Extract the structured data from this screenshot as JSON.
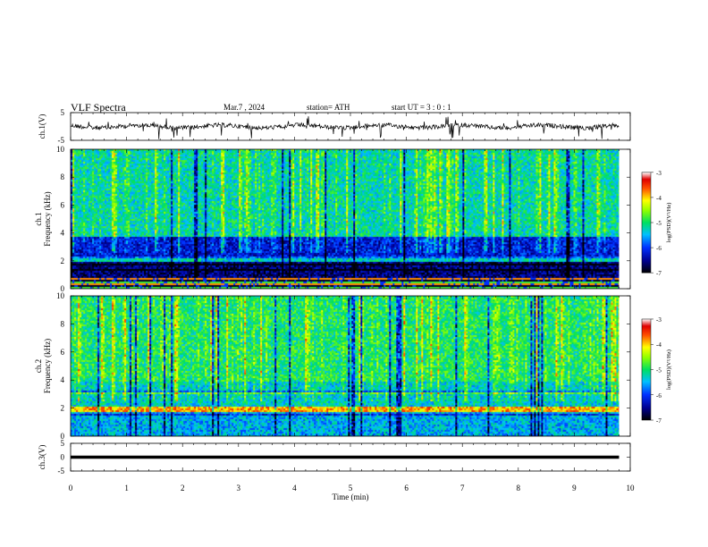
{
  "header": {
    "title": "VLF  Spectra",
    "date": "Mar.7  , 2024",
    "station": "station= ATH",
    "start": "start  UT  =    3  : 0   : 1"
  },
  "chart_data": [
    {
      "type": "line",
      "panel": "ch1-waveform",
      "ylabel": "ch.1(V)",
      "ylim": [
        -5,
        5
      ],
      "yticks": [
        "5",
        "-5"
      ],
      "x_range_min": [
        0,
        9.8
      ],
      "color": "#000000"
    },
    {
      "type": "heatmap",
      "panel": "ch1-spectrogram",
      "ylabel_channel": "ch.1",
      "ylabel": "Frequency (kHz)",
      "ylim": [
        0,
        10
      ],
      "yticks": [
        "0",
        "2",
        "4",
        "6",
        "8",
        "10"
      ],
      "x_range_min": [
        0,
        9.8
      ],
      "colorbar": {
        "label": "log(PSD)(V²/Hz)",
        "ticks": [
          "-3",
          "-4",
          "-5",
          "-6",
          "-7"
        ],
        "range": [
          -7,
          -3
        ]
      },
      "bands_khz": [
        {
          "from": 0,
          "to": 0.8,
          "level": "mixed-lines"
        },
        {
          "from": 0.8,
          "to": 2.0,
          "level": -6.6
        },
        {
          "from": 2.0,
          "to": 2.4,
          "level": -5.3
        },
        {
          "from": 2.4,
          "to": 3.8,
          "level": -6.2
        },
        {
          "from": 3.8,
          "to": 10,
          "level": -5.2
        }
      ]
    },
    {
      "type": "heatmap",
      "panel": "ch2-spectrogram",
      "ylabel_channel": "ch.2",
      "ylabel": "Frequency (kHz)",
      "ylim": [
        0,
        10
      ],
      "yticks": [
        "0",
        "2",
        "4",
        "6",
        "8",
        "10"
      ],
      "x_range_min": [
        0,
        9.8
      ],
      "colorbar": {
        "label": "log(PSD)(V²/Hz)",
        "ticks": [
          "-3",
          "-4",
          "-5",
          "-6",
          "-7"
        ],
        "range": [
          -7,
          -3
        ]
      },
      "bands_khz": [
        {
          "from": 0,
          "to": 1.8,
          "level": -5.6
        },
        {
          "from": 1.8,
          "to": 2.2,
          "level": -4.0
        },
        {
          "from": 2.2,
          "to": 4.0,
          "level": -5.4
        },
        {
          "from": 4.0,
          "to": 10,
          "level": -5.1
        }
      ]
    },
    {
      "type": "line",
      "panel": "ch3-waveform",
      "ylabel": "ch.3(V)",
      "ylim": [
        -5,
        5
      ],
      "yticks": [
        "5",
        "0",
        "-5"
      ],
      "x_range_min": [
        0,
        9.8
      ],
      "values_const": 0,
      "color": "#000000"
    }
  ],
  "x_axis": {
    "label": "Time  (min)",
    "ticks": [
      "0",
      "1",
      "2",
      "3",
      "4",
      "5",
      "6",
      "7",
      "8",
      "9",
      "10"
    ],
    "xlim": [
      0,
      10
    ]
  }
}
